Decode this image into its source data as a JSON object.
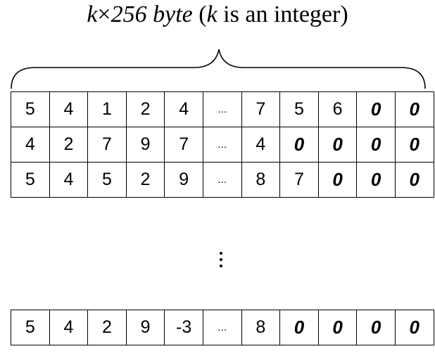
{
  "title": {
    "k1": "k",
    "times": "×",
    "size": "256 byte",
    "open": " (",
    "k2": "k",
    "rest": " is an integer)"
  },
  "top_rows": [
    [
      "5",
      "4",
      "1",
      "2",
      "4",
      "...",
      "7",
      "5",
      "6",
      "0",
      "0"
    ],
    [
      "4",
      "2",
      "7",
      "9",
      "7",
      "...",
      "4",
      "0",
      "0",
      "0",
      "0"
    ],
    [
      "5",
      "4",
      "5",
      "2",
      "9",
      "...",
      "8",
      "7",
      "0",
      "0",
      "0"
    ]
  ],
  "bottom_row": [
    "5",
    "4",
    "2",
    "9",
    "-3",
    "...",
    "8",
    "0",
    "0",
    "0",
    "0"
  ]
}
